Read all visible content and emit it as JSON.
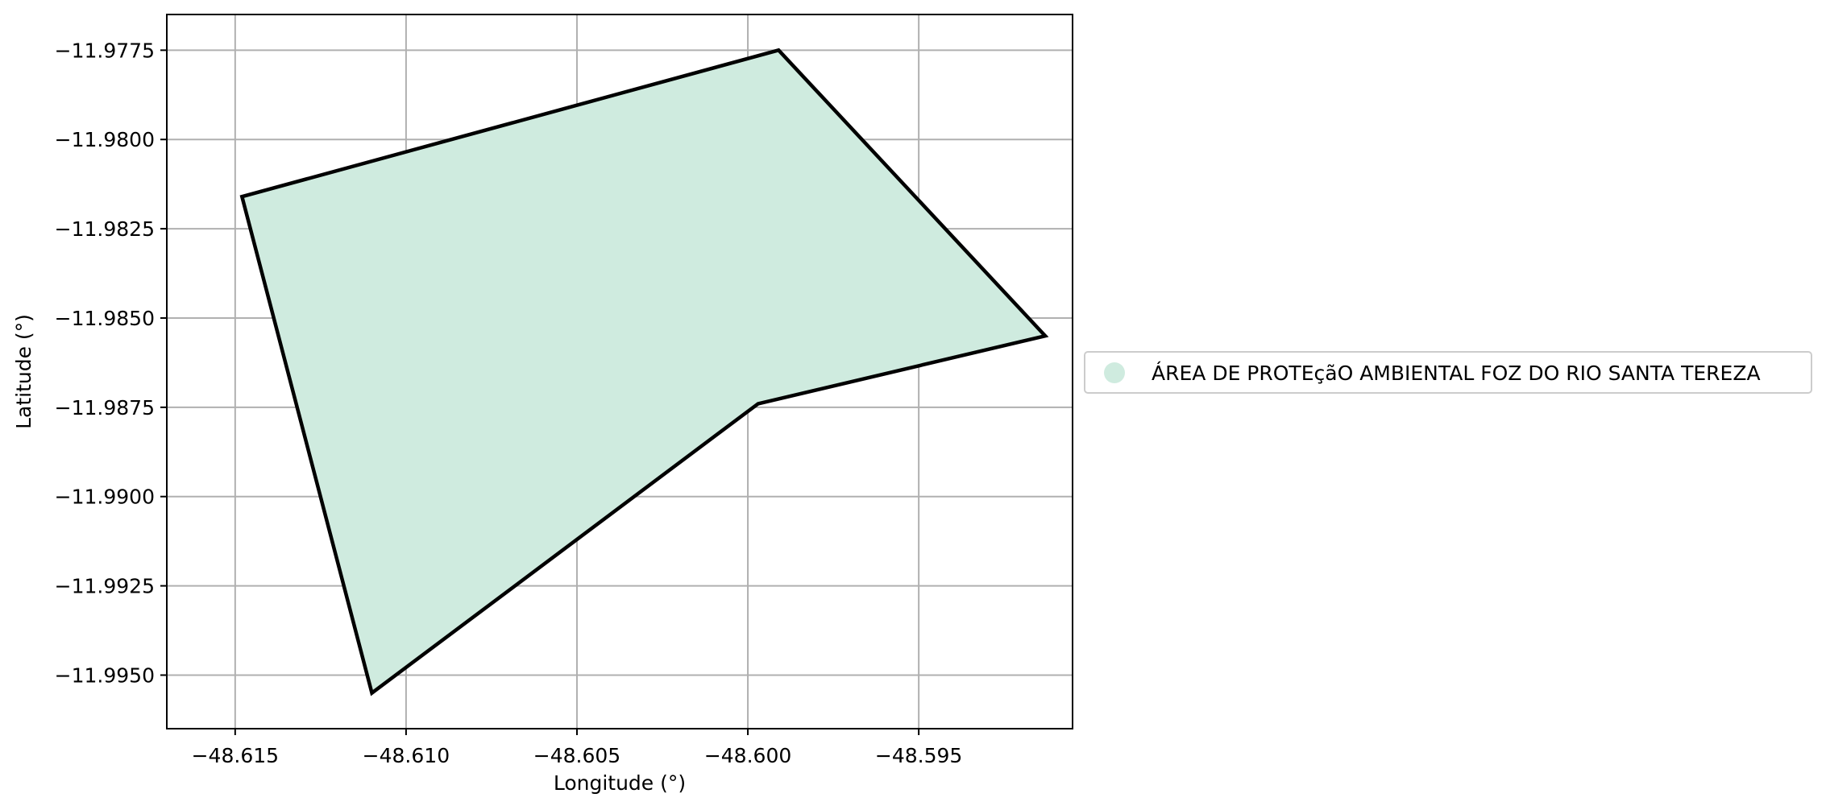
{
  "chart_data": {
    "type": "map",
    "xlabel": "Longitude (°)",
    "ylabel": "Latitude (°)",
    "xlim": [
      -48.617,
      -48.5905
    ],
    "ylim": [
      -11.9965,
      -11.9765
    ],
    "x_ticks": [
      -48.615,
      -48.61,
      -48.605,
      -48.6,
      -48.595
    ],
    "x_tick_labels": [
      "−48.615",
      "−48.610",
      "−48.605",
      "−48.600",
      "−48.595"
    ],
    "y_ticks": [
      -11.9775,
      -11.98,
      -11.9825,
      -11.985,
      -11.9875,
      -11.99,
      -11.9925,
      -11.995
    ],
    "y_tick_labels": [
      "−11.9775",
      "−11.9800",
      "−11.9825",
      "−11.9850",
      "−11.9875",
      "−11.9900",
      "−11.9925",
      "−11.9950"
    ],
    "grid": true,
    "legend_position": "right",
    "series": [
      {
        "name": "ÁREA DE PROTEçãO AMBIENTAL FOZ DO RIO SANTA TEREZA",
        "fill_color": "#cfebdf",
        "edge_color": "#000000",
        "polygon": [
          [
            -48.6148,
            -11.9816
          ],
          [
            -48.5991,
            -11.9775
          ],
          [
            -48.5913,
            -11.9855
          ],
          [
            -48.5997,
            -11.9874
          ],
          [
            -48.611,
            -11.9955
          ],
          [
            -48.6148,
            -11.9816
          ]
        ]
      }
    ]
  }
}
